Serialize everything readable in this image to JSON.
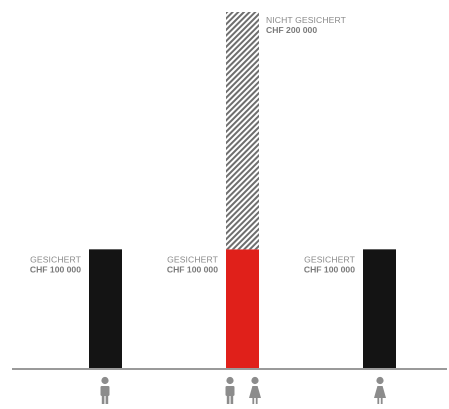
{
  "chart_data": {
    "type": "bar",
    "colors": {
      "secured_single": "#141414",
      "secured_joint": "#e0201a",
      "unsecured_hatch": "#6e6e6e",
      "baseline": "#9a9a9a",
      "person_icon": "#8c8c8c"
    },
    "groups": [
      {
        "persons": [
          "man"
        ],
        "segments": [
          {
            "label": "GESICHERT",
            "value_text": "CHF 100 000",
            "value": 100000,
            "style": "secured_single"
          }
        ]
      },
      {
        "persons": [
          "man",
          "woman"
        ],
        "segments": [
          {
            "label": "GESICHERT",
            "value_text": "CHF 100 000",
            "value": 100000,
            "style": "secured_joint"
          },
          {
            "label": "NICHT GESICHERT",
            "value_text": "CHF 200 000",
            "value": 200000,
            "style": "unsecured_hatch"
          }
        ]
      },
      {
        "persons": [
          "woman"
        ],
        "segments": [
          {
            "label": "GESICHERT",
            "value_text": "CHF 100 000",
            "value": 100000,
            "style": "secured_single"
          }
        ]
      }
    ],
    "ylim": [
      0,
      300000
    ]
  }
}
